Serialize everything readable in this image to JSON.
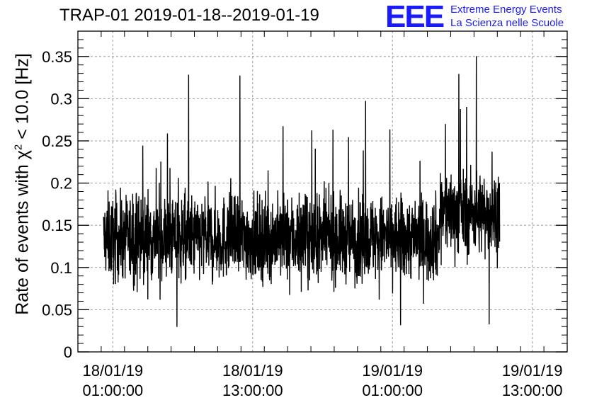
{
  "title": "TRAP-01 2019-01-18--2019-01-19",
  "logo": {
    "mark": "EEE",
    "line1": "Extreme Energy Events",
    "line2": "La Scienza nelle Scuole",
    "color": "#1a1aff"
  },
  "chart_data": {
    "type": "line",
    "title": "TRAP-01 2019-01-18--2019-01-19",
    "ylabel_prefix": "Rate of events with χ",
    "ylabel_sup": "2",
    "ylabel_suffix": " < 10.0 [Hz]",
    "xlabel": "",
    "ylim": [
      0,
      0.38
    ],
    "yticks": [
      0,
      0.05,
      0.1,
      0.15,
      0.2,
      0.25,
      0.3,
      0.35
    ],
    "ytick_labels": [
      "0",
      "0.05",
      "0.1",
      "0.15",
      "0.2",
      "0.25",
      "0.3",
      "0.35"
    ],
    "xlim_hours": [
      -3,
      39
    ],
    "xticks_hours": [
      0,
      12,
      24,
      36
    ],
    "xtick_labels": [
      [
        "18/01/19",
        "01:00:00"
      ],
      [
        "18/01/19",
        "13:00:00"
      ],
      [
        "19/01/19",
        "01:00:00"
      ],
      [
        "19/01/19",
        "13:00:00"
      ]
    ],
    "grid": true,
    "series": [
      {
        "name": "rate",
        "color": "#000000",
        "x_start_hours": -0.8,
        "x_end_hours": 33.2,
        "n_points": 2040,
        "segments": [
          {
            "from_hours": -0.8,
            "to_hours": 28.0,
            "mean": 0.135,
            "min": 0.03,
            "max": 0.33
          },
          {
            "from_hours": 28.0,
            "to_hours": 33.2,
            "mean": 0.165,
            "min": 0.033,
            "max": 0.35
          }
        ],
        "notable_peaks": [
          {
            "x_hours": 6.5,
            "y": 0.328
          },
          {
            "x_hours": 10.9,
            "y": 0.327
          },
          {
            "x_hours": 21.7,
            "y": 0.297
          },
          {
            "x_hours": 29.7,
            "y": 0.329
          },
          {
            "x_hours": 31.2,
            "y": 0.35
          }
        ],
        "notable_minima": [
          {
            "x_hours": 5.5,
            "y": 0.03
          },
          {
            "x_hours": 24.7,
            "y": 0.032
          },
          {
            "x_hours": 32.3,
            "y": 0.033
          }
        ]
      }
    ]
  }
}
